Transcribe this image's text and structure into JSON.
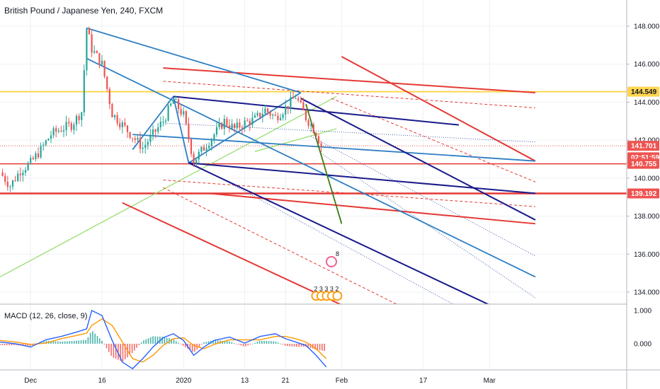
{
  "header": {
    "symbol_title": "British Pound / Japanese Yen, 240, FXCM"
  },
  "macd": {
    "title": "MACD (12, 26, close, 9)"
  },
  "colors": {
    "up": "#26a69a",
    "down": "#ef5350",
    "grid": "#eef0f4",
    "macd_line": "#2962ff",
    "signal_line": "#ff9800",
    "navy": "#1a1a8c",
    "steel_blue": "#2e7fc4",
    "red": "#e53935",
    "green": "#3a7d11",
    "light_green": "#8fdc64",
    "yellow": "#ffd54f"
  },
  "chart_data": [
    {
      "type": "candlestick",
      "title": "British Pound / Japanese Yen, 240, FXCM",
      "y_ticks": [
        "148.000",
        "146.000",
        "144.000",
        "142.000",
        "140.000",
        "138.000",
        "136.000",
        "134.000"
      ],
      "ylim": [
        133.3,
        148.8
      ],
      "x_ticks": [
        "Dec",
        "16",
        "2020",
        "13",
        "21",
        "Feb",
        "17",
        "Mar"
      ],
      "price_labels": [
        {
          "value": 144.549,
          "text": "144.549",
          "color": "#ffd54f",
          "text_color": "#131722"
        },
        {
          "value": 141.701,
          "text": "141.701",
          "color": "#ef5350",
          "text_color": "#ffffff"
        },
        {
          "value": 141.1,
          "text": "02:51:59",
          "color": "#ef5350",
          "text_color": "#ffffff"
        },
        {
          "value": 140.755,
          "text": "140.755",
          "color": "#ef5350",
          "text_color": "#ffffff"
        },
        {
          "value": 139.192,
          "text": "139.192",
          "color": "#ef5350",
          "text_color": "#ffffff"
        }
      ],
      "horizontal_levels": [
        {
          "value": 144.549,
          "color": "#ffd54f",
          "width": 2
        },
        {
          "value": 140.755,
          "color": "#e53935",
          "width": 1.5
        },
        {
          "value": 139.192,
          "color": "#e53935",
          "width": 2.5
        }
      ],
      "close_path": [
        [
          "2019-11-26",
          140.3
        ],
        [
          "2019-11-28",
          139.6
        ],
        [
          "2019-11-30",
          140.4
        ],
        [
          "2019-12-02",
          140.8
        ],
        [
          "2019-12-04",
          141.5
        ],
        [
          "2019-12-06",
          142.3
        ],
        [
          "2019-12-08",
          142.6
        ],
        [
          "2019-12-10",
          142.8
        ],
        [
          "2019-12-12",
          143.5
        ],
        [
          "2019-12-13",
          147.9
        ],
        [
          "2019-12-14",
          146.8
        ],
        [
          "2019-12-16",
          146.0
        ],
        [
          "2019-12-18",
          143.4
        ],
        [
          "2019-12-20",
          142.8
        ],
        [
          "2019-12-22",
          142.2
        ],
        [
          "2019-12-24",
          141.6
        ],
        [
          "2019-12-26",
          142.3
        ],
        [
          "2019-12-28",
          143.0
        ],
        [
          "2019-12-30",
          144.1
        ],
        [
          "2020-01-01",
          143.3
        ],
        [
          "2020-01-03",
          140.9
        ],
        [
          "2020-01-05",
          141.6
        ],
        [
          "2020-01-07",
          142.3
        ],
        [
          "2020-01-09",
          143.0
        ],
        [
          "2020-01-11",
          142.6
        ],
        [
          "2020-01-13",
          142.9
        ],
        [
          "2020-01-15",
          143.1
        ],
        [
          "2020-01-17",
          143.6
        ],
        [
          "2020-01-19",
          143.2
        ],
        [
          "2020-01-21",
          143.7
        ],
        [
          "2020-01-23",
          144.3
        ],
        [
          "2020-01-25",
          143.2
        ],
        [
          "2020-01-27",
          142.4
        ],
        [
          "2020-01-28",
          141.7
        ]
      ],
      "drawings": {
        "navy_lines": [
          [
            [
              "2019-12-30",
              144.3
            ],
            [
              "2020-02-24",
              142.8
            ]
          ],
          [
            [
              "2020-01-02",
              140.8
            ],
            [
              "2020-03-10",
              139.2
            ]
          ],
          [
            [
              "2020-01-02",
              140.8
            ],
            [
              "2020-03-02",
              133.2
            ]
          ],
          [
            [
              "2020-01-24",
              144.2
            ],
            [
              "2020-03-10",
              137.8
            ]
          ]
        ],
        "steel_blue_lines": [
          [
            [
              "2019-12-13",
              147.9
            ],
            [
              "2020-01-24",
              144.5
            ]
          ],
          [
            [
              "2019-12-13",
              146.3
            ],
            [
              "2020-03-10",
              134.8
            ]
          ],
          [
            [
              "2019-12-22",
              142.3
            ],
            [
              "2020-03-10",
              140.9
            ]
          ],
          [
            [
              "2019-12-22",
              141.5
            ],
            [
              "2019-12-30",
              144.3
            ]
          ],
          [
            [
              "2019-12-30",
              144.3
            ],
            [
              "2020-01-02",
              140.8
            ]
          ],
          [
            [
              "2020-01-02",
              140.8
            ],
            [
              "2020-01-24",
              144.5
            ]
          ]
        ],
        "red_lines": [
          [
            [
              "2019-12-28",
              145.8
            ],
            [
              "2020-03-10",
              144.5
            ]
          ],
          [
            [
              "2020-01-06",
              139.2
            ],
            [
              "2020-03-10",
              137.6
            ]
          ],
          [
            [
              "2019-12-20",
              138.7
            ],
            [
              "2020-02-02",
              133.2
            ]
          ],
          [
            [
              "2020-02-01",
              146.4
            ],
            [
              "2020-03-10",
              140.9
            ]
          ]
        ],
        "red_dashed_lines": [
          [
            [
              "2019-12-28",
              145.1
            ],
            [
              "2020-03-10",
              143.7
            ]
          ],
          [
            [
              "2019-12-28",
              139.9
            ],
            [
              "2020-03-10",
              138.5
            ]
          ],
          [
            [
              "2019-12-28",
              139.5
            ],
            [
              "2020-02-13",
              133.2
            ]
          ],
          [
            [
              "2020-01-30",
              144.2
            ],
            [
              "2020-03-10",
              139.8
            ]
          ]
        ],
        "dotted_lines": [
          [
            [
              "2019-12-28",
              142.9
            ],
            [
              "2020-03-10",
              141.9
            ]
          ],
          [
            [
              "2020-01-02",
              140.9
            ],
            [
              "2020-02-24",
              133.2
            ]
          ],
          [
            [
              "2020-01-26",
              142.2
            ],
            [
              "2020-03-10",
              135.9
            ]
          ],
          [
            [
              "2020-01-28",
              141.3
            ],
            [
              "2020-03-10",
              133.7
            ]
          ]
        ],
        "green_lines": [
          [
            [
              "2020-01-25",
              143.9
            ],
            [
              "2020-02-01",
              137.6
            ]
          ]
        ],
        "light_green_lines": [
          [
            [
              "2019-11-26",
              134.8
            ],
            [
              "2020-01-31",
              144.3
            ]
          ],
          [
            [
              "2020-01-15",
              141.4
            ],
            [
              "2020-01-31",
              142.6
            ]
          ]
        ]
      },
      "event_badges": {
        "top_number": "8",
        "bottom_numbers": [
          "2",
          "3",
          "3",
          "3",
          "2"
        ]
      }
    },
    {
      "type": "line",
      "title": "MACD (12, 26, close, 9)",
      "y_ticks": [
        "1.000",
        "0.000"
      ],
      "ylim": [
        -1.35,
        1.15
      ],
      "series": [
        {
          "name": "MACD",
          "color": "#2962ff",
          "points": [
            [
              "2019-11-26",
              0.05
            ],
            [
              "2019-11-29",
              0.0
            ],
            [
              "2019-12-02",
              -0.1
            ],
            [
              "2019-12-05",
              0.12
            ],
            [
              "2019-12-08",
              0.22
            ],
            [
              "2019-12-11",
              0.35
            ],
            [
              "2019-12-13",
              0.45
            ],
            [
              "2019-12-14",
              1.0
            ],
            [
              "2019-12-16",
              0.85
            ],
            [
              "2019-12-18",
              0.1
            ],
            [
              "2019-12-20",
              -0.55
            ],
            [
              "2019-12-22",
              -0.75
            ],
            [
              "2019-12-24",
              -0.45
            ],
            [
              "2019-12-26",
              -0.1
            ],
            [
              "2019-12-28",
              0.18
            ],
            [
              "2019-12-30",
              0.3
            ],
            [
              "2020-01-01",
              0.1
            ],
            [
              "2020-01-03",
              -0.35
            ],
            [
              "2020-01-05",
              -0.1
            ],
            [
              "2020-01-07",
              0.1
            ],
            [
              "2020-01-10",
              0.2
            ],
            [
              "2020-01-13",
              0.02
            ],
            [
              "2020-01-16",
              0.22
            ],
            [
              "2020-01-19",
              0.3
            ],
            [
              "2020-01-21",
              0.15
            ],
            [
              "2020-01-23",
              0.05
            ],
            [
              "2020-01-25",
              -0.05
            ],
            [
              "2020-01-27",
              -0.35
            ],
            [
              "2020-01-29",
              -0.7
            ]
          ]
        },
        {
          "name": "Signal",
          "color": "#ff9800",
          "points": [
            [
              "2019-11-26",
              0.1
            ],
            [
              "2019-11-29",
              0.05
            ],
            [
              "2019-12-02",
              -0.02
            ],
            [
              "2019-12-05",
              0.02
            ],
            [
              "2019-12-08",
              0.15
            ],
            [
              "2019-12-11",
              0.25
            ],
            [
              "2019-12-13",
              0.32
            ],
            [
              "2019-12-14",
              0.55
            ],
            [
              "2019-12-16",
              0.75
            ],
            [
              "2019-12-18",
              0.55
            ],
            [
              "2019-12-20",
              0.05
            ],
            [
              "2019-12-22",
              -0.45
            ],
            [
              "2019-12-24",
              -0.55
            ],
            [
              "2019-12-26",
              -0.35
            ],
            [
              "2019-12-28",
              -0.05
            ],
            [
              "2019-12-30",
              0.15
            ],
            [
              "2020-01-01",
              0.18
            ],
            [
              "2020-01-03",
              -0.05
            ],
            [
              "2020-01-05",
              -0.15
            ],
            [
              "2020-01-07",
              -0.02
            ],
            [
              "2020-01-10",
              0.12
            ],
            [
              "2020-01-13",
              0.12
            ],
            [
              "2020-01-16",
              0.12
            ],
            [
              "2020-01-19",
              0.22
            ],
            [
              "2020-01-21",
              0.22
            ],
            [
              "2020-01-23",
              0.15
            ],
            [
              "2020-01-25",
              0.05
            ],
            [
              "2020-01-27",
              -0.15
            ],
            [
              "2020-01-29",
              -0.45
            ]
          ]
        }
      ]
    }
  ]
}
